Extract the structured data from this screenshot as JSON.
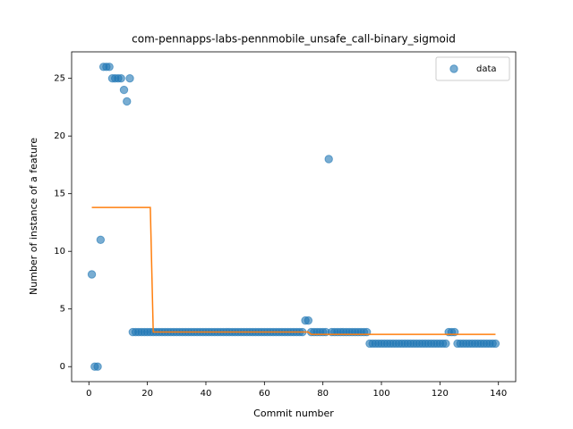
{
  "chart_data": {
    "type": "scatter",
    "title": "com-pennapps-labs-pennmobile_unsafe_call-binary_sigmoid",
    "xlabel": "Commit number",
    "ylabel": "Number of instance of a feature",
    "xlim": [
      -5.9,
      145.9
    ],
    "ylim": [
      -1.3,
      27.3
    ],
    "xticks": [
      0,
      20,
      40,
      60,
      80,
      100,
      120,
      140
    ],
    "yticks": [
      0,
      5,
      10,
      15,
      20,
      25
    ],
    "legend": "upper right",
    "series": [
      {
        "name": "data",
        "type": "scatter",
        "color": "#1f77b4",
        "x": [
          1,
          2,
          3,
          4,
          5,
          6,
          7,
          8,
          9,
          10,
          11,
          12,
          13,
          14,
          15,
          16,
          17,
          18,
          19,
          20,
          21,
          22,
          23,
          24,
          25,
          26,
          27,
          28,
          29,
          30,
          31,
          32,
          33,
          34,
          35,
          36,
          37,
          38,
          39,
          40,
          41,
          42,
          43,
          44,
          45,
          46,
          47,
          48,
          49,
          50,
          51,
          52,
          53,
          54,
          55,
          56,
          57,
          58,
          59,
          60,
          61,
          62,
          63,
          64,
          65,
          66,
          67,
          68,
          69,
          70,
          71,
          72,
          73,
          74,
          75,
          76,
          77,
          78,
          79,
          80,
          81,
          82,
          83,
          84,
          85,
          86,
          87,
          88,
          89,
          90,
          91,
          92,
          93,
          94,
          95,
          96,
          97,
          98,
          99,
          100,
          101,
          102,
          103,
          104,
          105,
          106,
          107,
          108,
          109,
          110,
          111,
          112,
          113,
          114,
          115,
          116,
          117,
          118,
          119,
          120,
          121,
          122,
          123,
          124,
          125,
          126,
          127,
          128,
          129,
          130,
          131,
          132,
          133,
          134,
          135,
          136,
          137,
          138,
          139
        ],
        "values": [
          8,
          0,
          0,
          11,
          26,
          26,
          26,
          25,
          25,
          25,
          25,
          24,
          23,
          25,
          3,
          3,
          3,
          3,
          3,
          3,
          3,
          3,
          3,
          3,
          3,
          3,
          3,
          3,
          3,
          3,
          3,
          3,
          3,
          3,
          3,
          3,
          3,
          3,
          3,
          3,
          3,
          3,
          3,
          3,
          3,
          3,
          3,
          3,
          3,
          3,
          3,
          3,
          3,
          3,
          3,
          3,
          3,
          3,
          3,
          3,
          3,
          3,
          3,
          3,
          3,
          3,
          3,
          3,
          3,
          3,
          3,
          3,
          3,
          4,
          4,
          3,
          3,
          3,
          3,
          3,
          3,
          18,
          3,
          3,
          3,
          3,
          3,
          3,
          3,
          3,
          3,
          3,
          3,
          3,
          3,
          2,
          2,
          2,
          2,
          2,
          2,
          2,
          2,
          2,
          2,
          2,
          2,
          2,
          2,
          2,
          2,
          2,
          2,
          2,
          2,
          2,
          2,
          2,
          2,
          2,
          2,
          2,
          3,
          3,
          3,
          2,
          2,
          2,
          2,
          2,
          2,
          2,
          2,
          2,
          2,
          2,
          2,
          2,
          2
        ]
      },
      {
        "type": "line",
        "color": "#ff7f0e",
        "x": [
          1,
          21,
          22,
          75,
          76,
          139
        ],
        "values": [
          13.8,
          13.8,
          3.0,
          3.0,
          2.8,
          2.8
        ]
      }
    ]
  }
}
